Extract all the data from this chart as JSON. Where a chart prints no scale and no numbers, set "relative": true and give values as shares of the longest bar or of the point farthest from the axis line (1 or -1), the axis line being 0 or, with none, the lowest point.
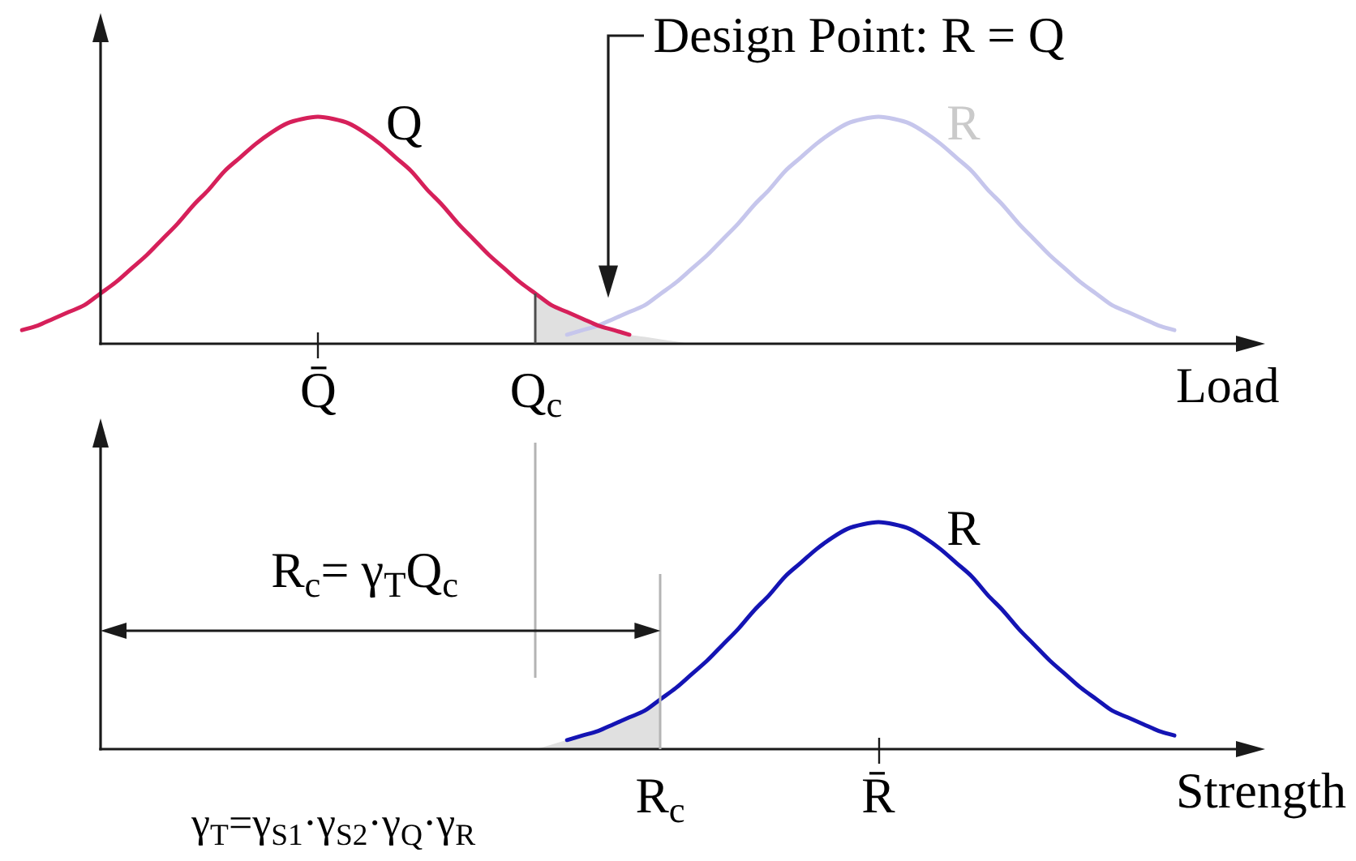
{
  "chart_data": [
    {
      "type": "line",
      "relative": true,
      "xlabel": "Load",
      "annotations": [
        "Design Point: R = Q"
      ],
      "categories": [
        null,
        null,
        null,
        null,
        null,
        null,
        null,
        null,
        null,
        null,
        null,
        null,
        null,
        null,
        null,
        null,
        null,
        null,
        null,
        null,
        "Q̄",
        null,
        null,
        null,
        null,
        null,
        null,
        null,
        null,
        null,
        null,
        null,
        null,
        null,
        "Q$_{c}$",
        null,
        null,
        null,
        null,
        null,
        null,
        null,
        null,
        null,
        null,
        null,
        null,
        null,
        null,
        null,
        null,
        null,
        null,
        null,
        null,
        null,
        null,
        null,
        null,
        null,
        null,
        null,
        null,
        null,
        null,
        null,
        null,
        null,
        null,
        null,
        null,
        null,
        null,
        null,
        null,
        null,
        null,
        null,
        null,
        null,
        null
      ],
      "series": [
        {
          "type": "area",
          "color": "#e0e0e0",
          "values": [
            null,
            null,
            null,
            null,
            null,
            null,
            null,
            null,
            null,
            null,
            null,
            null,
            null,
            null,
            null,
            null,
            null,
            null,
            null,
            null,
            null,
            null,
            null,
            null,
            null,
            null,
            null,
            null,
            null,
            null,
            null,
            null,
            null,
            null,
            0.22,
            0.17,
            0.14,
            0.11,
            0.08,
            0.06,
            0.04,
            0.03,
            0.02,
            0.01,
            0,
            null,
            null,
            null,
            null,
            null,
            null,
            null,
            null,
            null,
            null,
            null,
            null,
            null,
            null,
            null,
            null,
            null,
            null,
            null,
            null,
            null,
            null,
            null,
            null,
            null,
            null,
            null,
            null,
            null,
            null,
            null,
            null,
            null,
            null,
            null,
            null
          ]
        },
        {
          "type": "line",
          "name": "R",
          "color": "#c6c6ec",
          "values": [
            null,
            null,
            null,
            null,
            null,
            null,
            null,
            null,
            null,
            null,
            null,
            null,
            null,
            null,
            null,
            null,
            null,
            null,
            null,
            null,
            null,
            null,
            null,
            null,
            null,
            null,
            null,
            null,
            null,
            null,
            null,
            null,
            null,
            null,
            null,
            null,
            0.04,
            0.06,
            0.08,
            0.11,
            0.14,
            0.17,
            0.22,
            0.27,
            0.33,
            0.39,
            0.46,
            0.53,
            0.61,
            0.68,
            0.76,
            0.82,
            0.88,
            0.93,
            0.97,
            0.99,
            1,
            0.99,
            0.97,
            0.93,
            0.88,
            0.82,
            0.76,
            0.68,
            0.61,
            0.53,
            0.46,
            0.39,
            0.33,
            0.27,
            0.22,
            0.17,
            0.14,
            0.11,
            0.08,
            0.06,
            null,
            null,
            null,
            null,
            null
          ]
        },
        {
          "type": "line",
          "name": "Q",
          "color": "#d6205a",
          "values": [
            null,
            0.06,
            0.08,
            0.11,
            0.14,
            0.17,
            0.22,
            0.27,
            0.33,
            0.39,
            0.46,
            0.53,
            0.61,
            0.68,
            0.76,
            0.82,
            0.88,
            0.93,
            0.97,
            0.99,
            1,
            0.99,
            0.97,
            0.93,
            0.88,
            0.82,
            0.76,
            0.68,
            0.61,
            0.53,
            0.46,
            0.39,
            0.33,
            0.27,
            0.22,
            0.17,
            0.14,
            0.11,
            0.08,
            0.06,
            0.04,
            null,
            null,
            null,
            null,
            null,
            null,
            null,
            null,
            null,
            null,
            null,
            null,
            null,
            null,
            null,
            null,
            null,
            null,
            null,
            null,
            null,
            null,
            null,
            null,
            null,
            null,
            null,
            null,
            null,
            null,
            null,
            null,
            null,
            null,
            null,
            null,
            null,
            null,
            null,
            null
          ]
        }
      ]
    },
    {
      "type": "line",
      "relative": true,
      "xlabel": "Strength",
      "annotations": [
        "R$_{c}$= γ$_{T}$Q$_{c}$",
        "γ$_{T}$=γ$_{S1}$·γ$_{S2}$·γ$_{Q}$·γ$_{R}$"
      ],
      "categories": [
        null,
        null,
        null,
        null,
        null,
        null,
        null,
        null,
        null,
        null,
        null,
        null,
        null,
        null,
        null,
        null,
        null,
        null,
        null,
        null,
        null,
        null,
        null,
        null,
        null,
        null,
        null,
        null,
        null,
        null,
        null,
        null,
        null,
        null,
        null,
        null,
        null,
        null,
        null,
        null,
        null,
        null,
        "R$_{c}$",
        null,
        null,
        null,
        null,
        null,
        null,
        null,
        null,
        null,
        null,
        null,
        null,
        null,
        "R̄",
        null,
        null,
        null,
        null,
        null,
        null,
        null,
        null,
        null,
        null,
        null,
        null,
        null,
        null,
        null,
        null,
        null,
        null,
        null,
        null,
        null,
        null,
        null,
        null
      ],
      "series": [
        {
          "type": "area",
          "color": "#e0e0e0",
          "values": [
            null,
            null,
            null,
            null,
            null,
            null,
            null,
            null,
            null,
            null,
            null,
            null,
            null,
            null,
            null,
            null,
            null,
            null,
            null,
            null,
            null,
            null,
            null,
            null,
            null,
            null,
            null,
            null,
            null,
            null,
            null,
            null,
            null,
            null,
            0,
            0.02,
            0.04,
            0.06,
            0.08,
            0.11,
            0.14,
            0.17,
            0.22,
            null,
            null,
            null,
            null,
            null,
            null,
            null,
            null,
            null,
            null,
            null,
            null,
            null,
            null,
            null,
            null,
            null,
            null,
            null,
            null,
            null,
            null,
            null,
            null,
            null,
            null,
            null,
            null,
            null,
            null,
            null,
            null,
            null,
            null,
            null,
            null,
            null,
            null
          ]
        },
        {
          "type": "line",
          "name": "R",
          "color": "#1414b4",
          "values": [
            null,
            null,
            null,
            null,
            null,
            null,
            null,
            null,
            null,
            null,
            null,
            null,
            null,
            null,
            null,
            null,
            null,
            null,
            null,
            null,
            null,
            null,
            null,
            null,
            null,
            null,
            null,
            null,
            null,
            null,
            null,
            null,
            null,
            null,
            null,
            null,
            0.04,
            0.06,
            0.08,
            0.11,
            0.14,
            0.17,
            0.22,
            0.27,
            0.33,
            0.39,
            0.46,
            0.53,
            0.61,
            0.68,
            0.76,
            0.82,
            0.88,
            0.93,
            0.97,
            0.99,
            1,
            0.99,
            0.97,
            0.93,
            0.88,
            0.82,
            0.76,
            0.68,
            0.61,
            0.53,
            0.46,
            0.39,
            0.33,
            0.27,
            0.22,
            0.17,
            0.14,
            0.11,
            0.08,
            0.06,
            null,
            null,
            null,
            null,
            null
          ]
        }
      ]
    }
  ]
}
